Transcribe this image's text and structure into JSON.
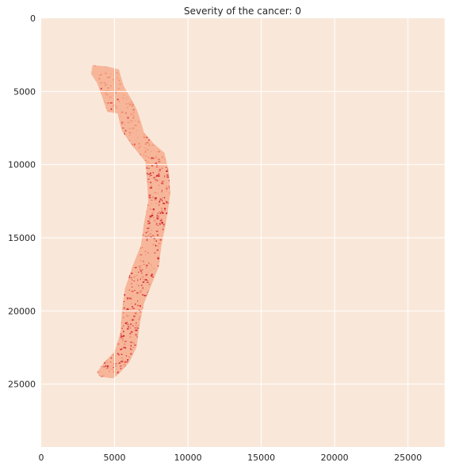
{
  "chart_data": {
    "type": "heatmap",
    "title": "Severity of the cancer: 0",
    "xlabel": "",
    "ylabel": "",
    "xlim": [
      0,
      27500
    ],
    "ylim": [
      29300,
      0
    ],
    "x_ticks": [
      0,
      5000,
      10000,
      15000,
      20000,
      25000
    ],
    "y_ticks": [
      0,
      5000,
      10000,
      15000,
      20000,
      25000
    ],
    "grid": true,
    "colors": {
      "background": "#f9e8da",
      "grid": "#ffffff",
      "tissue_light": "#f7b699",
      "tissue_mid": "#ef8a6d",
      "tissue_dark": "#cf1f2e"
    },
    "tissue_outline": [
      [
        3500,
        3200
      ],
      [
        4500,
        3300
      ],
      [
        5300,
        3500
      ],
      [
        5600,
        4600
      ],
      [
        6000,
        5300
      ],
      [
        6500,
        6200
      ],
      [
        6800,
        7100
      ],
      [
        7000,
        7800
      ],
      [
        7700,
        8600
      ],
      [
        8400,
        9200
      ],
      [
        8700,
        10500
      ],
      [
        8800,
        12000
      ],
      [
        8500,
        14000
      ],
      [
        8200,
        15500
      ],
      [
        8000,
        17000
      ],
      [
        7600,
        18000
      ],
      [
        7000,
        19500
      ],
      [
        6700,
        21000
      ],
      [
        6500,
        22500
      ],
      [
        6000,
        23500
      ],
      [
        5300,
        24300
      ],
      [
        4900,
        24600
      ],
      [
        4000,
        24500
      ],
      [
        3800,
        24200
      ],
      [
        4300,
        23500
      ],
      [
        5000,
        22800
      ],
      [
        5400,
        21500
      ],
      [
        5500,
        20000
      ],
      [
        5700,
        18500
      ],
      [
        6200,
        17000
      ],
      [
        6800,
        15500
      ],
      [
        7000,
        14000
      ],
      [
        7300,
        12500
      ],
      [
        7200,
        11000
      ],
      [
        7100,
        9800
      ],
      [
        6200,
        8700
      ],
      [
        5500,
        7700
      ],
      [
        5200,
        6500
      ],
      [
        4500,
        6400
      ],
      [
        4200,
        5500
      ],
      [
        3800,
        4400
      ],
      [
        3400,
        3800
      ]
    ],
    "dense_region": {
      "y_range": [
        9500,
        24600
      ],
      "note": ""
    }
  }
}
